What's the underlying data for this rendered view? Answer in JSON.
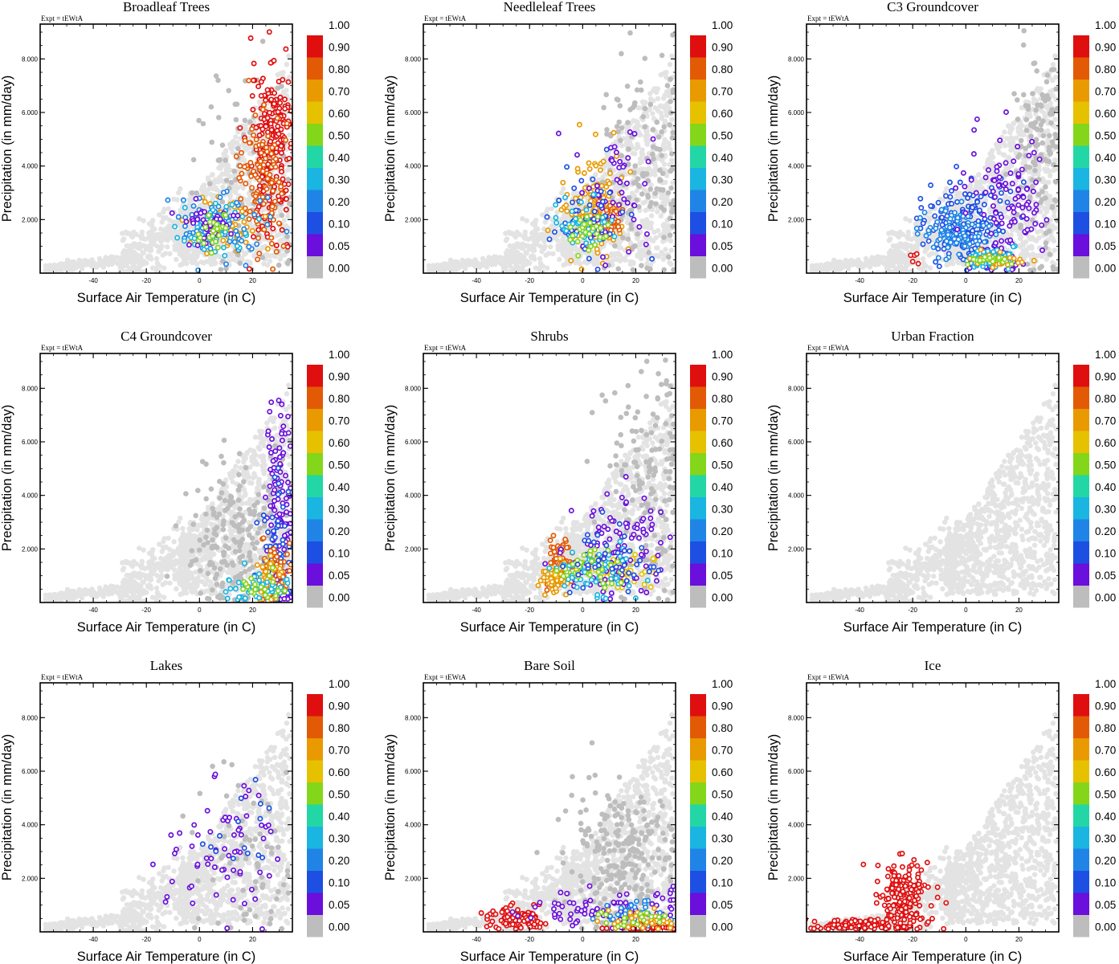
{
  "figure": {
    "background": "#ffffff",
    "axis_color": "#000000"
  },
  "colorbar": {
    "levels": [
      "0.00",
      "0.05",
      "0.10",
      "0.20",
      "0.30",
      "0.40",
      "0.50",
      "0.60",
      "0.70",
      "0.80",
      "0.90",
      "1.00"
    ],
    "colors": [
      "#bdbdbd",
      "#6a0fdc",
      "#1e4fe3",
      "#1f84e6",
      "#1ab5e0",
      "#22d7a5",
      "#84d61b",
      "#e6c100",
      "#e89a00",
      "#e25a06",
      "#e00f0f"
    ]
  },
  "background_point_color": "#e3e3e3",
  "chart_data": [
    {
      "type": "scatter",
      "title": "Broadleaf Trees",
      "expt": "Expt = tEWtA",
      "xlabel": "Surface Air Temperature (in C)",
      "ylabel": "Precipitation (in mm/day)",
      "xlim": [
        -60,
        35
      ],
      "ylim": [
        0,
        9.3
      ],
      "xticks": [
        "-40",
        "-20",
        "0",
        "20"
      ],
      "yticks": [
        "2.000",
        "4.000",
        "6.000",
        "8.000"
      ],
      "clusters": [
        {
          "color": "#bdbdbd",
          "cx": 20,
          "cy": 3.8,
          "sx": 10,
          "sy": 1.8,
          "n": 110
        },
        {
          "color": "#e00f0f",
          "cx": 27,
          "cy": 4.8,
          "sx": 4,
          "sy": 1.7,
          "n": 230
        },
        {
          "color": "#e25a06",
          "cx": 24,
          "cy": 3.4,
          "sx": 5,
          "sy": 1.4,
          "n": 110
        },
        {
          "color": "#e89a00",
          "cx": 10,
          "cy": 1.8,
          "sx": 6,
          "sy": 0.5,
          "n": 60
        },
        {
          "color": "#1f84e6",
          "cx": 8,
          "cy": 2.0,
          "sx": 8,
          "sy": 0.6,
          "n": 80
        },
        {
          "color": "#1ab5e0",
          "cx": 6,
          "cy": 1.6,
          "sx": 6,
          "sy": 0.5,
          "n": 50
        },
        {
          "color": "#6a0fdc",
          "cx": 4,
          "cy": 1.7,
          "sx": 5,
          "sy": 0.5,
          "n": 40
        },
        {
          "color": "#84d61b",
          "cx": 5,
          "cy": 1.5,
          "sx": 4,
          "sy": 0.4,
          "n": 25
        }
      ]
    },
    {
      "type": "scatter",
      "title": "Needleleaf Trees",
      "expt": "Expt = tEWtA",
      "xlabel": "Surface Air Temperature (in C)",
      "ylabel": "Precipitation (in mm/day)",
      "xlim": [
        -60,
        35
      ],
      "ylim": [
        0,
        9.3
      ],
      "xticks": [
        "-40",
        "-20",
        "0",
        "20"
      ],
      "yticks": [
        "2.000",
        "4.000",
        "6.000",
        "8.000"
      ],
      "clusters": [
        {
          "color": "#bdbdbd",
          "cx": 22,
          "cy": 3.8,
          "sx": 9,
          "sy": 2.0,
          "n": 150
        },
        {
          "color": "#e89a00",
          "cx": 5,
          "cy": 2.4,
          "sx": 6,
          "sy": 0.9,
          "n": 130
        },
        {
          "color": "#e25a06",
          "cx": 10,
          "cy": 2.0,
          "sx": 3,
          "sy": 0.3,
          "n": 50
        },
        {
          "color": "#6a0fdc",
          "cx": 14,
          "cy": 3.0,
          "sx": 8,
          "sy": 1.3,
          "n": 60
        },
        {
          "color": "#1e4fe3",
          "cx": 3,
          "cy": 2.0,
          "sx": 7,
          "sy": 0.7,
          "n": 50
        },
        {
          "color": "#1ab5e0",
          "cx": 2,
          "cy": 1.8,
          "sx": 5,
          "sy": 0.5,
          "n": 40
        },
        {
          "color": "#84d61b",
          "cx": 3,
          "cy": 1.6,
          "sx": 4,
          "sy": 0.4,
          "n": 30
        }
      ]
    },
    {
      "type": "scatter",
      "title": "C3 Groundcover",
      "expt": "Expt = tEWtA",
      "xlabel": "Surface Air Temperature (in C)",
      "ylabel": "Precipitation (in mm/day)",
      "xlim": [
        -60,
        35
      ],
      "ylim": [
        0,
        9.3
      ],
      "xticks": [
        "-40",
        "-20",
        "0",
        "20"
      ],
      "yticks": [
        "2.000",
        "4.000",
        "6.000",
        "8.000"
      ],
      "clusters": [
        {
          "color": "#bdbdbd",
          "cx": 27,
          "cy": 4.2,
          "sx": 5,
          "sy": 2.0,
          "n": 140
        },
        {
          "color": "#1e4fe3",
          "cx": 0,
          "cy": 1.9,
          "sx": 8,
          "sy": 0.8,
          "n": 160
        },
        {
          "color": "#1f84e6",
          "cx": -5,
          "cy": 1.5,
          "sx": 7,
          "sy": 0.5,
          "n": 110
        },
        {
          "color": "#6a0fdc",
          "cx": 15,
          "cy": 2.6,
          "sx": 8,
          "sy": 1.3,
          "n": 110
        },
        {
          "color": "#1ab5e0",
          "cx": 10,
          "cy": 0.6,
          "sx": 6,
          "sy": 0.2,
          "n": 50
        },
        {
          "color": "#e89a00",
          "cx": 12,
          "cy": 0.45,
          "sx": 5,
          "sy": 0.12,
          "n": 30
        },
        {
          "color": "#84d61b",
          "cx": 9,
          "cy": 0.5,
          "sx": 5,
          "sy": 0.12,
          "n": 25
        },
        {
          "color": "#e00f0f",
          "cx": -19,
          "cy": 0.6,
          "sx": 1,
          "sy": 0.08,
          "n": 5
        }
      ]
    },
    {
      "type": "scatter",
      "title": "C4 Groundcover",
      "expt": "Expt = tEWtA",
      "xlabel": "Surface Air Temperature (in C)",
      "ylabel": "Precipitation (in mm/day)",
      "xlim": [
        -60,
        35
      ],
      "ylim": [
        0,
        9.3
      ],
      "xticks": [
        "-40",
        "-20",
        "0",
        "20"
      ],
      "yticks": [
        "2.000",
        "4.000",
        "6.000",
        "8.000"
      ],
      "clusters": [
        {
          "color": "#bdbdbd",
          "cx": 15,
          "cy": 2.4,
          "sx": 11,
          "sy": 1.6,
          "n": 220
        },
        {
          "color": "#6a0fdc",
          "cx": 30,
          "cy": 3.4,
          "sx": 2.5,
          "sy": 2.2,
          "n": 110
        },
        {
          "color": "#1e4fe3",
          "cx": 29,
          "cy": 2.0,
          "sx": 2.5,
          "sy": 1.3,
          "n": 60
        },
        {
          "color": "#e25a06",
          "cx": 29,
          "cy": 1.2,
          "sx": 3,
          "sy": 0.5,
          "n": 50
        },
        {
          "color": "#e89a00",
          "cx": 26,
          "cy": 0.8,
          "sx": 4,
          "sy": 0.4,
          "n": 40
        },
        {
          "color": "#1ab5e0",
          "cx": 22,
          "cy": 0.5,
          "sx": 6,
          "sy": 0.3,
          "n": 40
        },
        {
          "color": "#84d61b",
          "cx": 24,
          "cy": 0.6,
          "sx": 4,
          "sy": 0.3,
          "n": 20
        }
      ]
    },
    {
      "type": "scatter",
      "title": "Shrubs",
      "expt": "Expt = tEWtA",
      "xlabel": "Surface Air Temperature (in C)",
      "ylabel": "Precipitation (in mm/day)",
      "xlim": [
        -60,
        35
      ],
      "ylim": [
        0,
        9.3
      ],
      "xticks": [
        "-40",
        "-20",
        "0",
        "20"
      ],
      "yticks": [
        "2.000",
        "4.000",
        "6.000",
        "8.000"
      ],
      "clusters": [
        {
          "color": "#bdbdbd",
          "cx": 24,
          "cy": 4.2,
          "sx": 8,
          "sy": 2.2,
          "n": 160
        },
        {
          "color": "#e25a06",
          "cx": -8,
          "cy": 1.5,
          "sx": 2.5,
          "sy": 0.4,
          "n": 70
        },
        {
          "color": "#e89a00",
          "cx": -10,
          "cy": 1.0,
          "sx": 3,
          "sy": 0.3,
          "n": 60
        },
        {
          "color": "#e6c100",
          "cx": 12,
          "cy": 1.2,
          "sx": 7,
          "sy": 0.3,
          "n": 70
        },
        {
          "color": "#6a0fdc",
          "cx": 12,
          "cy": 2.0,
          "sx": 9,
          "sy": 1.0,
          "n": 110
        },
        {
          "color": "#1ab5e0",
          "cx": 5,
          "cy": 1.2,
          "sx": 7,
          "sy": 0.5,
          "n": 60
        },
        {
          "color": "#84d61b",
          "cx": 2,
          "cy": 1.3,
          "sx": 6,
          "sy": 0.4,
          "n": 40
        },
        {
          "color": "#1e4fe3",
          "cx": 10,
          "cy": 1.8,
          "sx": 8,
          "sy": 0.8,
          "n": 40
        }
      ]
    },
    {
      "type": "scatter",
      "title": "Urban Fraction",
      "expt": "Expt = tEWtA",
      "xlabel": "Surface Air Temperature (in C)",
      "ylabel": "Precipitation (in mm/day)",
      "xlim": [
        -60,
        35
      ],
      "ylim": [
        0,
        9.3
      ],
      "xticks": [
        "-40",
        "-20",
        "0",
        "20"
      ],
      "yticks": [
        "2.000",
        "4.000",
        "6.000",
        "8.000"
      ],
      "clusters": []
    },
    {
      "type": "scatter",
      "title": "Lakes",
      "expt": "Expt = tEWtA",
      "xlabel": "Surface Air Temperature (in C)",
      "ylabel": "Precipitation (in mm/day)",
      "xlim": [
        -60,
        35
      ],
      "ylim": [
        0,
        9.3
      ],
      "xticks": [
        "-40",
        "-20",
        "0",
        "20"
      ],
      "yticks": [
        "2.000",
        "4.000",
        "6.000",
        "8.000"
      ],
      "clusters": [
        {
          "color": "#bdbdbd",
          "cx": 18,
          "cy": 2.8,
          "sx": 10,
          "sy": 1.6,
          "n": 70
        },
        {
          "color": "#6a0fdc",
          "cx": 8,
          "cy": 2.8,
          "sx": 12,
          "sy": 1.3,
          "n": 65
        },
        {
          "color": "#1e4fe3",
          "cx": 15,
          "cy": 3.5,
          "sx": 8,
          "sy": 1.0,
          "n": 15
        }
      ]
    },
    {
      "type": "scatter",
      "title": "Bare Soil",
      "expt": "Expt = tEWtA",
      "xlabel": "Surface Air Temperature (in C)",
      "ylabel": "Precipitation (in mm/day)",
      "xlim": [
        -60,
        35
      ],
      "ylim": [
        0,
        9.3
      ],
      "xticks": [
        "-40",
        "-20",
        "0",
        "20"
      ],
      "yticks": [
        "2.000",
        "4.000",
        "6.000",
        "8.000"
      ],
      "clusters": [
        {
          "color": "#bdbdbd",
          "cx": 15,
          "cy": 2.6,
          "sx": 11,
          "sy": 1.5,
          "n": 260
        },
        {
          "color": "#e00f0f",
          "cx": -25,
          "cy": 0.5,
          "sx": 5,
          "sy": 0.25,
          "n": 90
        },
        {
          "color": "#e00f0f",
          "cx": 25,
          "cy": 0.15,
          "sx": 7,
          "sy": 0.08,
          "n": 50
        },
        {
          "color": "#6a0fdc",
          "cx": 12,
          "cy": 0.9,
          "sx": 16,
          "sy": 0.4,
          "n": 80
        },
        {
          "color": "#1f84e6",
          "cx": 20,
          "cy": 0.6,
          "sx": 8,
          "sy": 0.3,
          "n": 40
        },
        {
          "color": "#e89a00",
          "cx": 22,
          "cy": 0.4,
          "sx": 8,
          "sy": 0.2,
          "n": 40
        },
        {
          "color": "#84d61b",
          "cx": 18,
          "cy": 0.5,
          "sx": 7,
          "sy": 0.2,
          "n": 20
        }
      ]
    },
    {
      "type": "scatter",
      "title": "Ice",
      "expt": "Expt = tEWtA",
      "xlabel": "Surface Air Temperature (in C)",
      "ylabel": "Precipitation (in mm/day)",
      "xlim": [
        -60,
        35
      ],
      "ylim": [
        0,
        9.3
      ],
      "xticks": [
        "-40",
        "-20",
        "0",
        "20"
      ],
      "yticks": [
        "2.000",
        "4.000",
        "6.000",
        "8.000"
      ],
      "clusters": [
        {
          "color": "#e00f0f",
          "cx": -24,
          "cy": 1.2,
          "sx": 5,
          "sy": 0.7,
          "n": 200
        },
        {
          "color": "#e00f0f",
          "cx": -42,
          "cy": 0.25,
          "sx": 9,
          "sy": 0.12,
          "n": 110
        }
      ]
    }
  ]
}
